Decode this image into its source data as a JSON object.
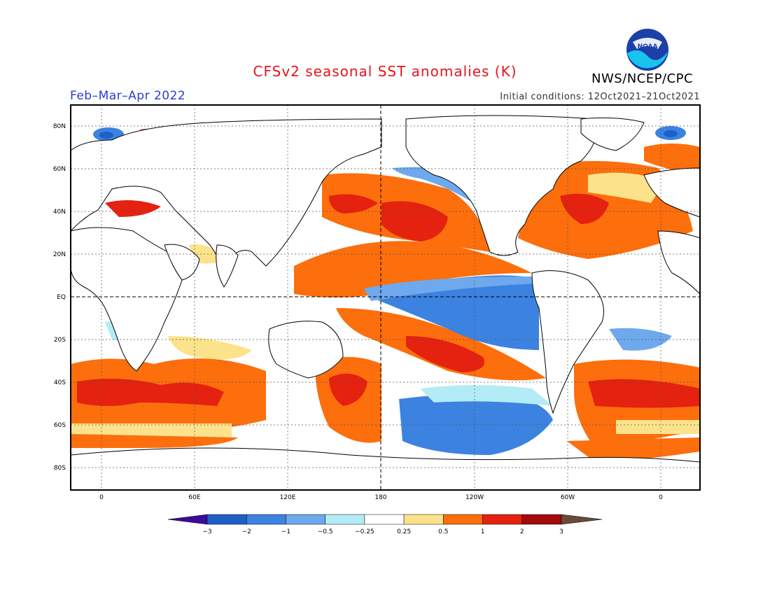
{
  "title": "CFSv2 seasonal SST anomalies (K)",
  "period": "Feb–Mar–Apr 2022",
  "initial_conditions": "Initial conditions: 12Oct2021–21Oct2021",
  "agency": "NWS/NCEP/CPC",
  "logo_text": "NOAA",
  "lat_labels": [
    "80N",
    "60N",
    "40N",
    "20N",
    "EQ",
    "20S",
    "40S",
    "60S",
    "80S"
  ],
  "lon_labels": [
    "0",
    "60E",
    "120E",
    "180",
    "120W",
    "60W",
    "0"
  ],
  "colorbar": {
    "labels": [
      "−3",
      "−2",
      "−1",
      "−0.5",
      "−0.25",
      "0.25",
      "0.5",
      "1",
      "2",
      "3"
    ],
    "colors": [
      "#3c0a9e",
      "#1e5fc8",
      "#3c82e1",
      "#6ea9ee",
      "#b4ecf6",
      "#ffffff",
      "#fde28c",
      "#fd6e0c",
      "#e5210f",
      "#a30a0a",
      "#6b4a3a"
    ]
  },
  "colors": {
    "title": "#e8141e",
    "period": "#2a3bd8",
    "land": "#ffffff",
    "coast": "#000000"
  }
}
